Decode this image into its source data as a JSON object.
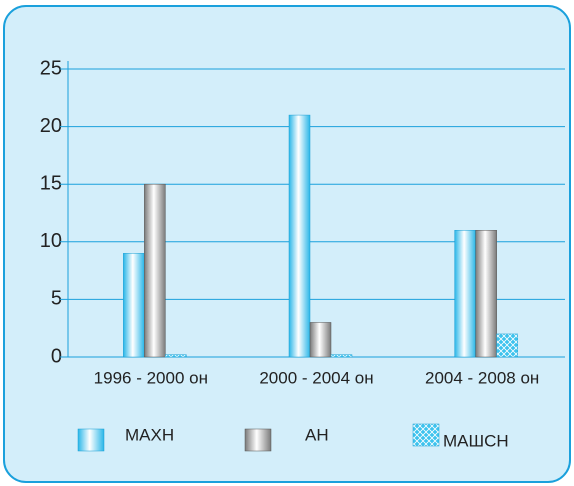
{
  "chart_data": {
    "type": "bar",
    "categories": [
      "1996 - 2000 он",
      "2000 - 2004 он",
      "2004 - 2008 он"
    ],
    "series": [
      {
        "name": "МАХН",
        "color": "#29b6e8",
        "values": [
          9,
          21,
          11
        ]
      },
      {
        "name": "АН",
        "color": "#7a7a7a",
        "values": [
          15,
          3,
          11
        ]
      },
      {
        "name": "МАШСН",
        "color": "#3cc3ee",
        "values": [
          0.2,
          0.2,
          2
        ]
      }
    ],
    "ylim": [
      0,
      25
    ],
    "yticks": [
      0,
      5,
      10,
      15,
      20,
      25
    ],
    "grid": true,
    "legend": "bottom"
  }
}
